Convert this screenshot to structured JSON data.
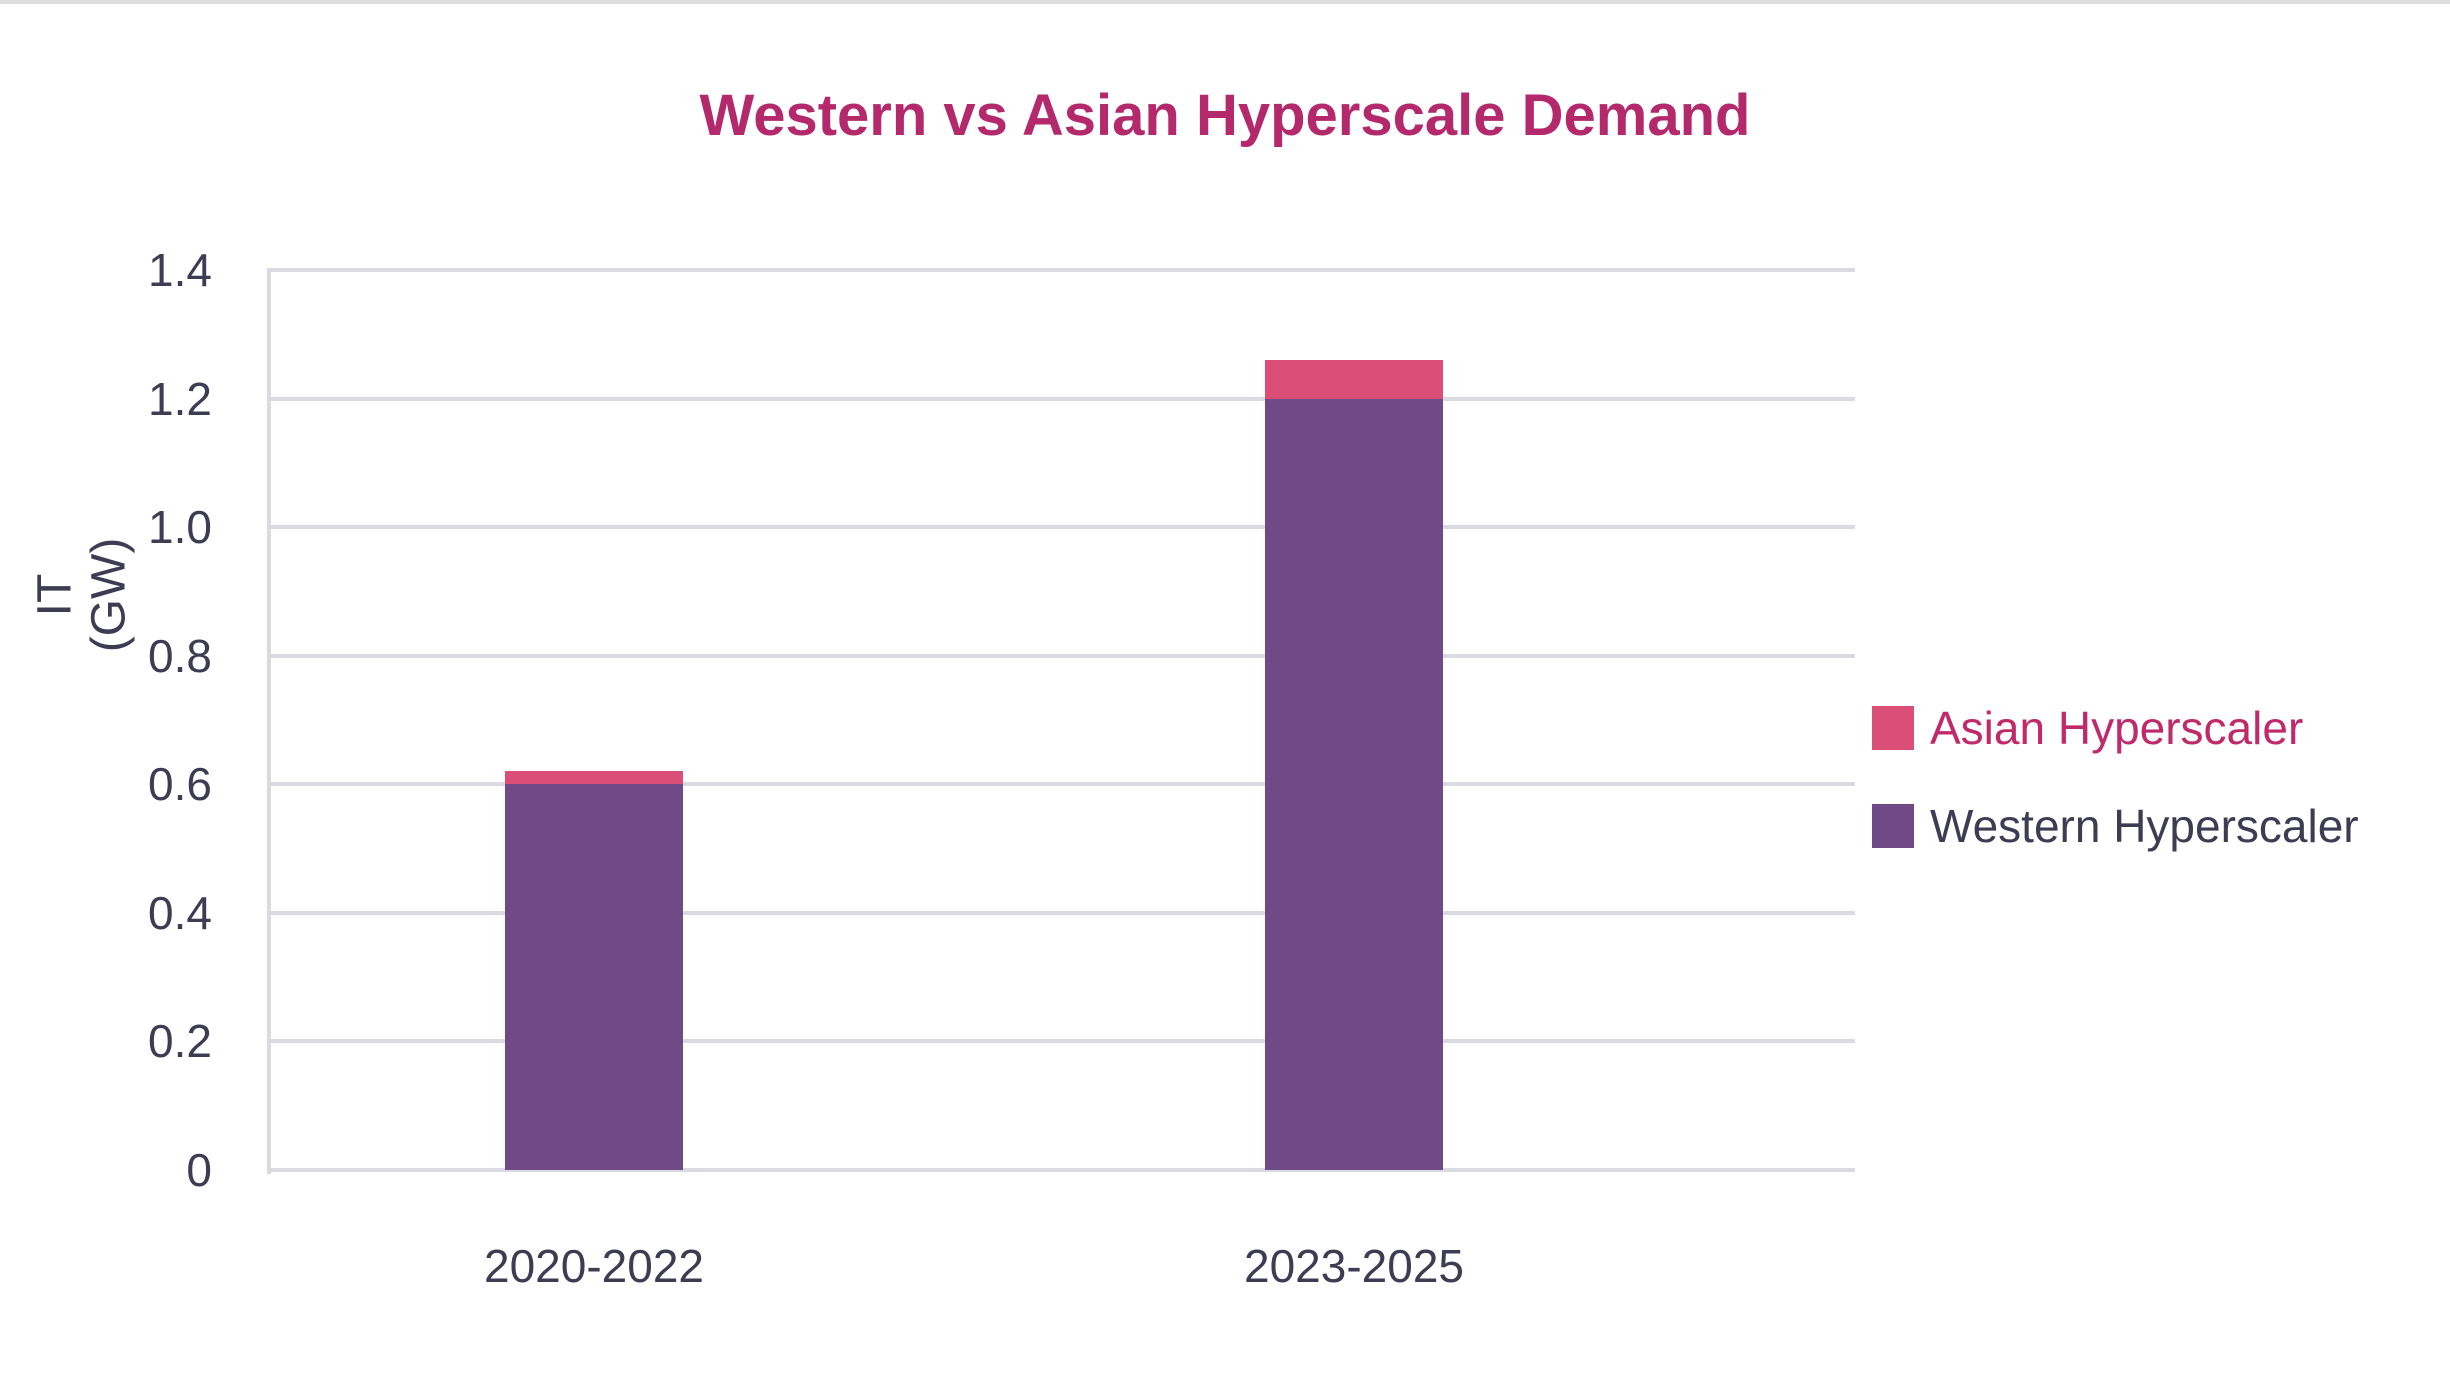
{
  "window": {
    "top_strip_color": "#DEDEDE"
  },
  "chart_data": {
    "type": "bar",
    "stacked": true,
    "title": "Western vs Asian Hyperscale Demand",
    "title_color": "#B3296B",
    "xlabel": "",
    "ylabel": "IT (GW)",
    "ylabel_lines": [
      "IT",
      "(GW)"
    ],
    "categories": [
      "2020-2022",
      "2023-2025"
    ],
    "series": [
      {
        "name": "Western Hyperscaler",
        "color": "#6F4A86",
        "values": [
          0.6,
          1.2
        ]
      },
      {
        "name": "Asian Hyperscaler",
        "color": "#DA4E77",
        "values": [
          0.02,
          0.06
        ]
      }
    ],
    "stack_totals": [
      0.62,
      1.26
    ],
    "ylim": [
      0,
      1.4
    ],
    "yticks": [
      0,
      0.2,
      0.4,
      0.6,
      0.8,
      1.0,
      1.2,
      1.4
    ],
    "ytick_labels": [
      "0",
      "0.2",
      "0.4",
      "0.6",
      "0.8",
      "1.0",
      "1.2",
      "1.4"
    ],
    "grid": true,
    "gridline_color": "#DADAE2",
    "axis_text_color": "#3E3C52",
    "legend_position": "right-middle",
    "legend": [
      {
        "label": "Asian Hyperscaler",
        "swatch_color": "#DA4E77",
        "text_color": "#C02A6B"
      },
      {
        "label": "Western Hyperscaler",
        "swatch_color": "#6F4A86",
        "text_color": "#3E3C52"
      }
    ]
  }
}
